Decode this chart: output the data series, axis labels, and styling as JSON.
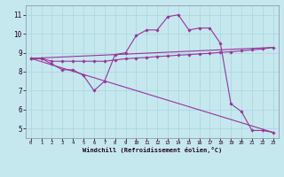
{
  "xlabel": "Windchill (Refroidissement éolien,°C)",
  "background_color": "#c5e8ee",
  "grid_color": "#aad4dc",
  "line_color": "#993399",
  "xlim": [
    -0.5,
    23.5
  ],
  "ylim": [
    4.5,
    11.5
  ],
  "xticks": [
    0,
    1,
    2,
    3,
    4,
    5,
    6,
    7,
    8,
    9,
    10,
    11,
    12,
    13,
    14,
    15,
    16,
    17,
    18,
    19,
    20,
    21,
    22,
    23
  ],
  "yticks": [
    5,
    6,
    7,
    8,
    9,
    10,
    11
  ],
  "lines": [
    {
      "x": [
        0,
        1,
        2,
        3,
        4,
        5,
        6,
        7,
        8,
        9,
        10,
        11,
        12,
        13,
        14,
        15,
        16,
        17,
        18,
        19,
        20,
        21,
        22,
        23
      ],
      "y": [
        8.7,
        8.7,
        8.4,
        8.1,
        8.1,
        7.8,
        7.0,
        7.5,
        8.9,
        9.0,
        9.9,
        10.2,
        10.2,
        10.9,
        11.0,
        10.2,
        10.3,
        10.3,
        9.5,
        6.3,
        5.9,
        4.9,
        4.9,
        4.8
      ],
      "marker": true
    },
    {
      "x": [
        0,
        1,
        2,
        3,
        4,
        5,
        6,
        7,
        8,
        9,
        10,
        11,
        12,
        13,
        14,
        15,
        16,
        17,
        18,
        19,
        20,
        21,
        22,
        23
      ],
      "y": [
        8.7,
        8.7,
        8.55,
        8.55,
        8.55,
        8.55,
        8.55,
        8.55,
        8.62,
        8.68,
        8.72,
        8.75,
        8.8,
        8.83,
        8.87,
        8.9,
        8.94,
        8.97,
        9.02,
        9.05,
        9.1,
        9.15,
        9.2,
        9.28
      ],
      "marker": true
    },
    {
      "x": [
        0,
        23
      ],
      "y": [
        8.7,
        4.8
      ],
      "marker": false
    },
    {
      "x": [
        0,
        23
      ],
      "y": [
        8.7,
        9.28
      ],
      "marker": false
    }
  ]
}
